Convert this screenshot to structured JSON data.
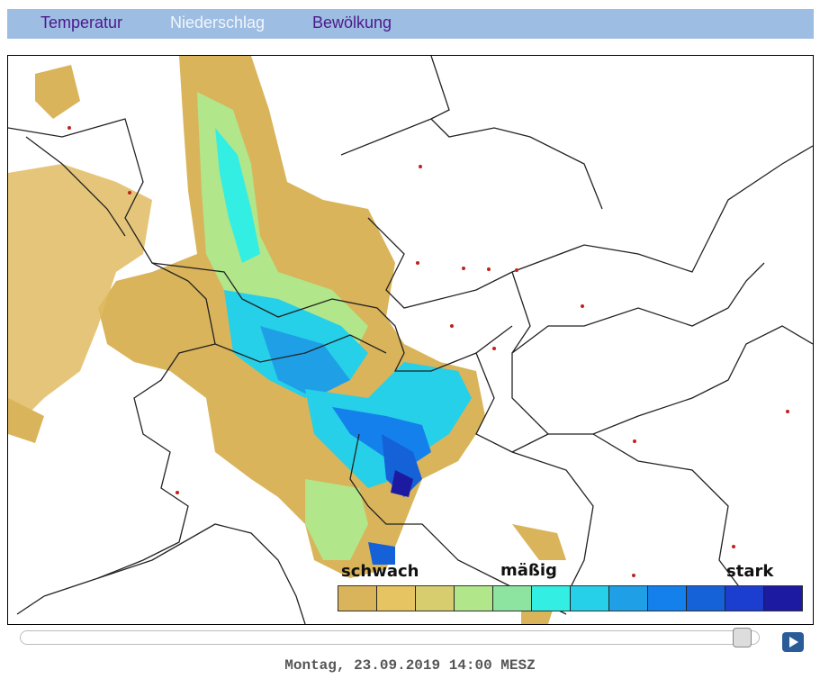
{
  "tabs": [
    {
      "label": "Temperatur",
      "active": false
    },
    {
      "label": "Niederschlag",
      "active": true
    },
    {
      "label": "Bewölkung",
      "active": false
    }
  ],
  "legend": {
    "low_label": "schwach",
    "mid_label": "mäßig",
    "high_label": "stark",
    "colors": [
      "#d9b45a",
      "#e6c462",
      "#d7cd6e",
      "#b1e68b",
      "#8de3a0",
      "#33eee2",
      "#26d0e8",
      "#1fa0e6",
      "#1480ec",
      "#1562d8",
      "#1b3ed0",
      "#1c1aa0"
    ]
  },
  "slider": {
    "position_fraction": 0.99
  },
  "play_icon": "play-icon",
  "timestamp": "Montag, 23.09.2019 14:00 MESZ"
}
